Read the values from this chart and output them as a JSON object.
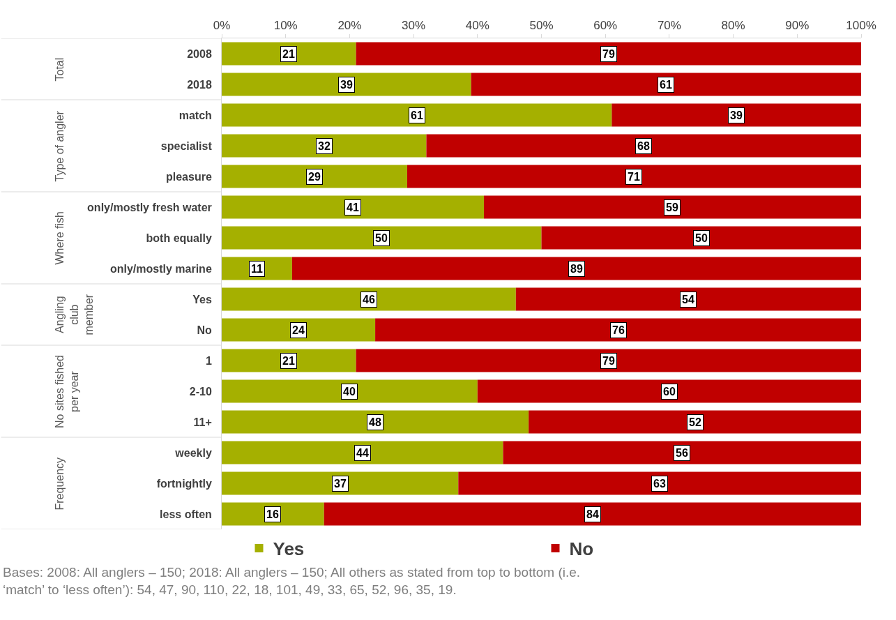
{
  "chart_data": {
    "type": "bar",
    "orientation": "horizontal",
    "stacked": true,
    "data_labels": true,
    "legend": "bottom",
    "categories": [
      "2008",
      "2018",
      "match",
      "specialist",
      "pleasure",
      "only/mostly fresh water",
      "both equally",
      "only/mostly marine",
      "Yes",
      "No",
      "1",
      "2-10",
      "11+",
      "weekly",
      "fortnightly",
      "less often"
    ],
    "series": [
      {
        "name": "Yes",
        "color": "#a5b000",
        "values": [
          21,
          39,
          61,
          32,
          29,
          41,
          50,
          11,
          46,
          24,
          21,
          40,
          48,
          44,
          37,
          16
        ]
      },
      {
        "name": "No",
        "color": "#c00000",
        "values": [
          79,
          61,
          39,
          68,
          71,
          59,
          50,
          89,
          54,
          76,
          79,
          60,
          52,
          56,
          63,
          84
        ]
      }
    ],
    "xlim": [
      0,
      100
    ],
    "xticks": [
      {
        "value": 0,
        "label": "0%"
      },
      {
        "value": 10,
        "label": "10%"
      },
      {
        "value": 20,
        "label": "20%"
      },
      {
        "value": 30,
        "label": "30%"
      },
      {
        "value": 40,
        "label": "40%"
      },
      {
        "value": 50,
        "label": "50%"
      },
      {
        "value": 60,
        "label": "60%"
      },
      {
        "value": 70,
        "label": "70%"
      },
      {
        "value": 80,
        "label": "80%"
      },
      {
        "value": 90,
        "label": "90%"
      },
      {
        "value": 100,
        "label": "100%"
      }
    ],
    "annotations": [
      "Total",
      "Type of angler",
      "Where fish",
      "Angling\nclub\nmember",
      "No sites fished\nper year",
      "Frequency",
      "Bases: 2008: All anglers – 150; 2018: All anglers – 150; All others as stated from top to bottom (i.e.\n‘match’ to ‘less often’): 54, 47, 90, 110, 22, 18, 101, 49, 33, 65, 52, 96, 35, 19."
    ]
  }
}
